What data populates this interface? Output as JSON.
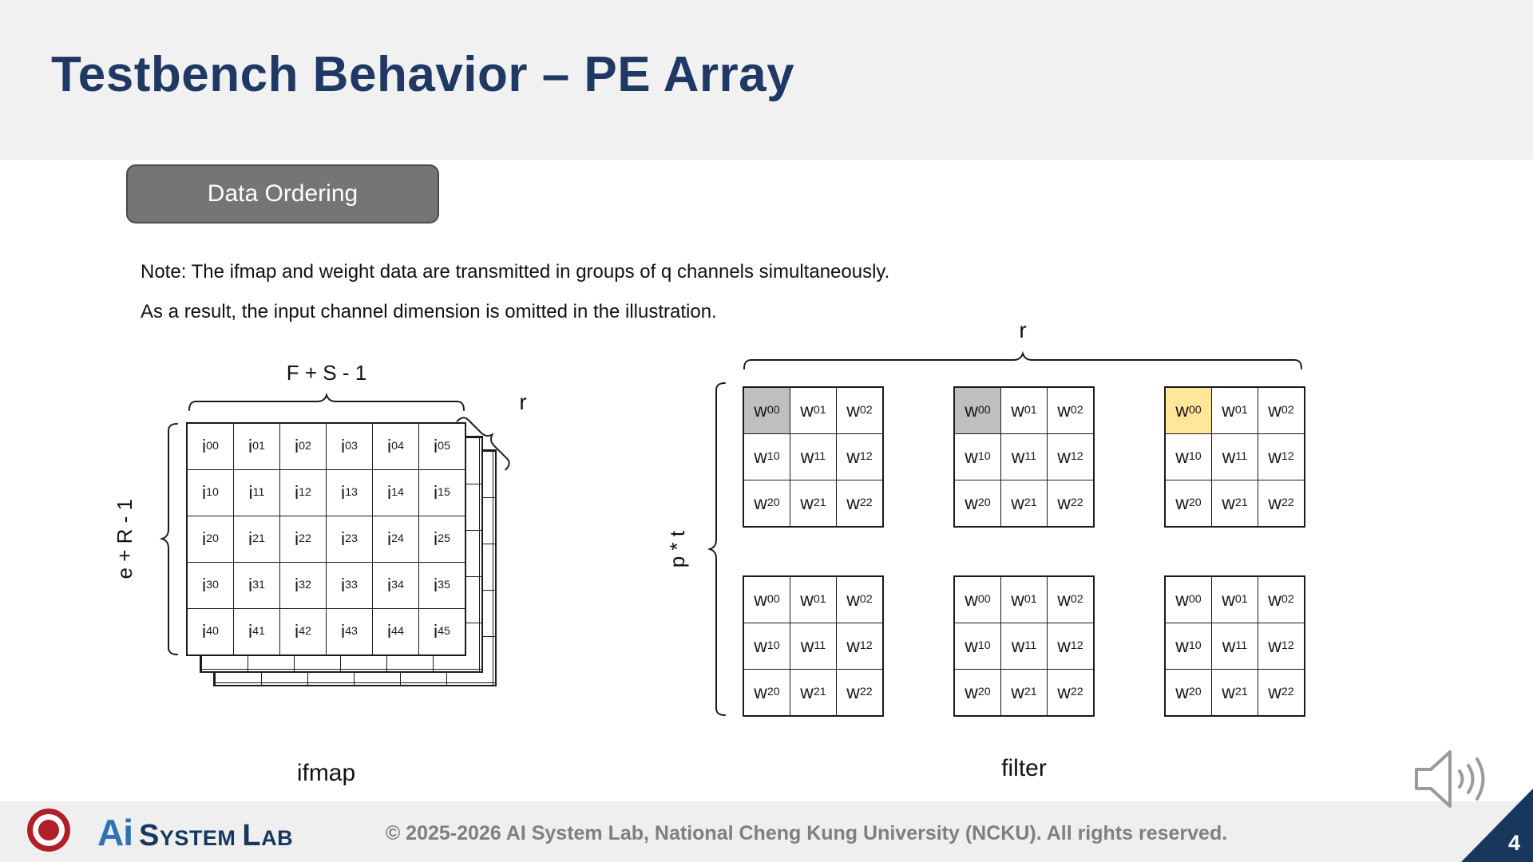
{
  "slide": {
    "title": "Testbench Behavior – PE Array",
    "page_number": "4"
  },
  "badge": {
    "label": "Data Ordering"
  },
  "note": {
    "line1": "Note: The ifmap and weight data are transmitted in groups of q channels simultaneously.",
    "line2": "As a result, the input channel dimension is omitted in the illustration."
  },
  "ifmap": {
    "label": "ifmap",
    "bracket_top": "F + S - 1",
    "bracket_left": "e + R - 1",
    "bracket_depth": "r",
    "cells": [
      [
        "i00",
        "i01",
        "i02",
        "i03",
        "i04",
        "i05"
      ],
      [
        "i10",
        "i11",
        "i12",
        "i13",
        "i14",
        "i15"
      ],
      [
        "i20",
        "i21",
        "i22",
        "i23",
        "i24",
        "i25"
      ],
      [
        "i30",
        "i31",
        "i32",
        "i33",
        "i34",
        "i35"
      ],
      [
        "i40",
        "i41",
        "i42",
        "i43",
        "i44",
        "i45"
      ]
    ]
  },
  "filter": {
    "label": "filter",
    "bracket_top": "r",
    "bracket_left": "p * t",
    "weight_cells": [
      [
        "w00",
        "w01",
        "w02"
      ],
      [
        "w10",
        "w11",
        "w12"
      ],
      [
        "w20",
        "w21",
        "w22"
      ]
    ],
    "grids": [
      {
        "highlight": "gray"
      },
      {
        "highlight": "gray"
      },
      {
        "highlight": "yellow"
      },
      {
        "highlight": "none"
      },
      {
        "highlight": "none"
      },
      {
        "highlight": "none"
      }
    ],
    "highlight_colors": {
      "gray": "#BFBFBF",
      "yellow": "#FFE699",
      "none": "#FFFFFF"
    }
  },
  "footer": {
    "copyright": "© 2025-2026 AI System Lab, National Cheng Kung University (NCKU). All rights reserved.",
    "logo": {
      "ai": "Ai",
      "system": "System",
      "lab": "Lab"
    }
  },
  "colors": {
    "accent_navy": "#1F3864",
    "badge_gray": "#757575",
    "highlight_gray": "#BFBFBF",
    "highlight_yellow": "#FFE699",
    "seal_red": "#B01E28",
    "logo_blue": "#2E74B5"
  }
}
